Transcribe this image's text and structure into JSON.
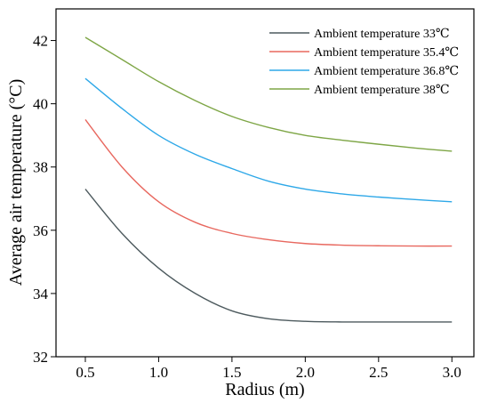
{
  "chart_data": {
    "type": "line",
    "xlabel": "Radius (m)",
    "ylabel": "Average air temperature (°C)",
    "xlim": [
      0.3,
      3.15
    ],
    "ylim": [
      32,
      43
    ],
    "xticks": [
      0.5,
      1.0,
      1.5,
      2.0,
      2.5,
      3.0
    ],
    "xtick_labels": [
      "0.5",
      "1.0",
      "1.5",
      "2.0",
      "2.5",
      "3.0"
    ],
    "yticks": [
      32,
      34,
      36,
      38,
      40,
      42
    ],
    "ytick_labels": [
      "32",
      "34",
      "36",
      "38",
      "40",
      "42"
    ],
    "legend_position": "top-right",
    "x": [
      0.5,
      0.75,
      1.0,
      1.25,
      1.5,
      1.75,
      2.0,
      2.25,
      2.5,
      2.75,
      3.0
    ],
    "series": [
      {
        "name": "Ambient temperature 33℃",
        "color": "#4d5a5e",
        "values": [
          37.3,
          35.9,
          34.8,
          34.0,
          33.45,
          33.2,
          33.12,
          33.1,
          33.1,
          33.1,
          33.1
        ]
      },
      {
        "name": "Ambient temperature 35.4℃",
        "color": "#e8685f",
        "values": [
          39.5,
          38.0,
          36.9,
          36.25,
          35.9,
          35.7,
          35.58,
          35.53,
          35.51,
          35.5,
          35.5
        ]
      },
      {
        "name": "Ambient temperature 36.8℃",
        "color": "#2ea8e8",
        "values": [
          40.8,
          39.85,
          39.0,
          38.4,
          37.95,
          37.55,
          37.3,
          37.15,
          37.05,
          36.97,
          36.9
        ]
      },
      {
        "name": "Ambient temperature 38℃",
        "color": "#7ea646",
        "values": [
          42.1,
          41.4,
          40.7,
          40.1,
          39.6,
          39.25,
          39.0,
          38.85,
          38.72,
          38.6,
          38.5
        ]
      }
    ]
  }
}
